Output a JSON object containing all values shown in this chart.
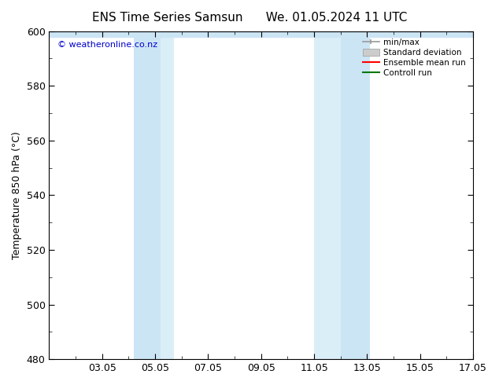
{
  "title_left": "ENS Time Series Samsun",
  "title_right": "We. 01.05.2024 11 UTC",
  "ylabel": "Temperature 850 hPa (°C)",
  "ylim": [
    480,
    600
  ],
  "yticks": [
    480,
    500,
    520,
    540,
    560,
    580,
    600
  ],
  "xlim": [
    1,
    17
  ],
  "xtick_labels": [
    "03.05",
    "05.05",
    "07.05",
    "09.05",
    "11.05",
    "13.05",
    "15.05",
    "17.05"
  ],
  "xtick_positions": [
    3,
    5,
    7,
    9,
    11,
    13,
    15,
    17
  ],
  "shaded_bands": [
    {
      "x_start": 4.2,
      "x_end": 5.2,
      "color": "#cce5f5",
      "alpha": 1.0
    },
    {
      "x_start": 5.2,
      "x_end": 5.7,
      "color": "#daeef8",
      "alpha": 1.0
    },
    {
      "x_start": 11.0,
      "x_end": 12.0,
      "color": "#daeef8",
      "alpha": 1.0
    },
    {
      "x_start": 12.0,
      "x_end": 13.1,
      "color": "#cce5f5",
      "alpha": 1.0
    }
  ],
  "watermark_text": "© weatheronline.co.nz",
  "watermark_color": "#0000cc",
  "background_color": "#ffffff",
  "plot_bg_color": "#ffffff",
  "legend_items": [
    {
      "label": "min/max",
      "color": "#999999",
      "lw": 1.2
    },
    {
      "label": "Standard deviation",
      "color": "#cccccc",
      "lw": 6
    },
    {
      "label": "Ensemble mean run",
      "color": "#ff0000",
      "lw": 1.5
    },
    {
      "label": "Controll run",
      "color": "#007700",
      "lw": 1.5
    }
  ],
  "title_fontsize": 11,
  "label_fontsize": 9,
  "tick_fontsize": 9,
  "minor_tick_count": 1
}
